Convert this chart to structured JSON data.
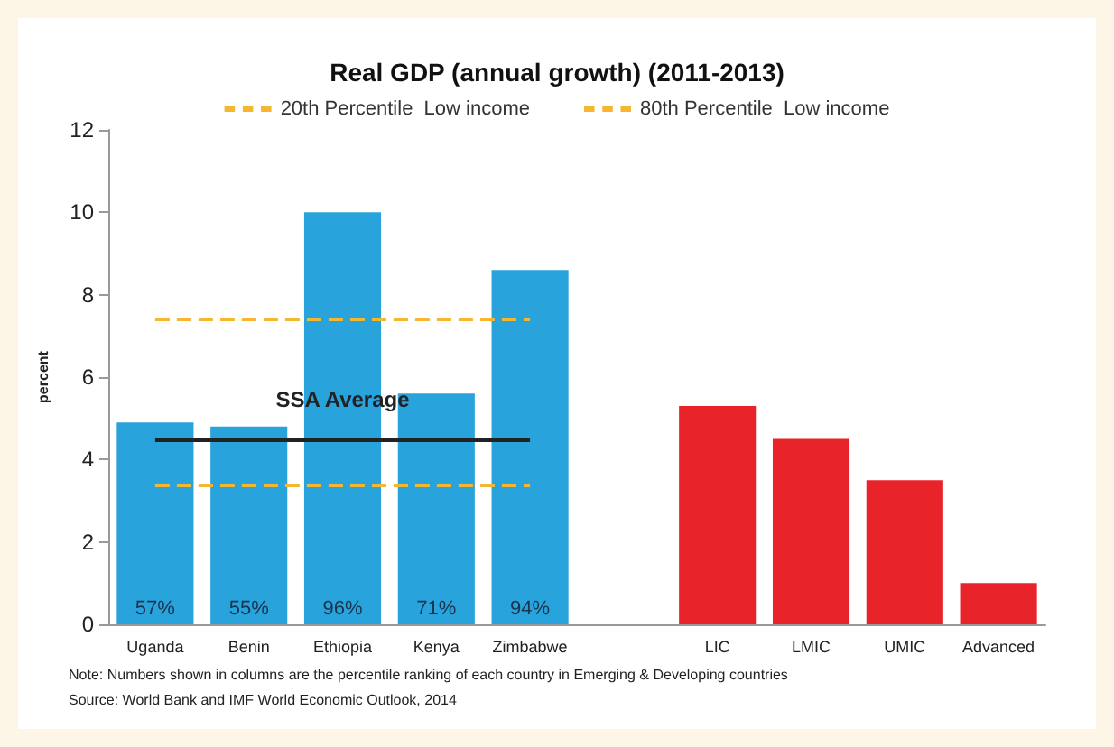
{
  "chart_data": {
    "type": "bar",
    "title": "Real GDP (annual growth) (2011-2013)",
    "ylabel": "percent",
    "categories": [
      "Uganda",
      "Benin",
      "Ethiopia",
      "Kenya",
      "Zimbabwe",
      null,
      "LIC",
      "LMIC",
      "UMIC",
      "Advanced"
    ],
    "values": [
      4.9,
      4.8,
      10.0,
      5.6,
      8.6,
      null,
      5.3,
      4.5,
      3.5,
      1.0
    ],
    "colors": [
      "#29a3dc",
      "#29a3dc",
      "#29a3dc",
      "#29a3dc",
      "#29a3dc",
      null,
      "#e8232a",
      "#e8232a",
      "#e8232a",
      "#e8232a"
    ],
    "ylim": [
      0,
      12
    ],
    "yticks": [
      0,
      2,
      4,
      6,
      8,
      10,
      12
    ],
    "grid": false,
    "legend": "top",
    "ref_lines": [
      {
        "axis": "y",
        "value": 3.4,
        "label": "20th Percentile  Low income",
        "color": "#f5b731",
        "line_style": "dashed"
      },
      {
        "axis": "y",
        "value": 7.4,
        "label": "80th Percentile  Low income",
        "color": "#f5b731",
        "line_style": "dashed"
      },
      {
        "axis": "y",
        "value": 4.5,
        "label": "SSA Average",
        "color": "#222222",
        "line_style": "solid"
      }
    ],
    "annotations": [
      {
        "text": "57%",
        "x": "Uganda",
        "y": 0
      },
      {
        "text": "55%",
        "x": "Benin",
        "y": 0
      },
      {
        "text": "96%",
        "x": "Ethiopia",
        "y": 0
      },
      {
        "text": "71%",
        "x": "Kenya",
        "y": 0
      },
      {
        "text": "94%",
        "x": "Zimbabwe",
        "y": 0
      },
      "Note: Numbers shown in columns are the percentile ranking of each country in Emerging & Developing countries",
      "Source: World Bank and IMF World Economic Outlook, 2014"
    ]
  }
}
